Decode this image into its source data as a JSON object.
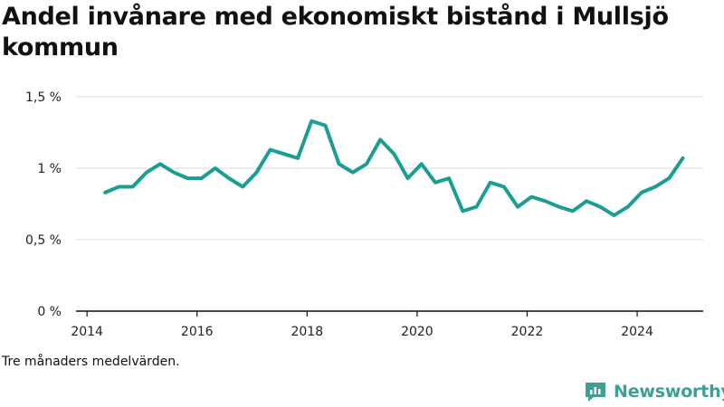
{
  "title": "Andel invånare med ekonomiskt bistånd i Mullsjö kommun",
  "note": "Tre månaders medelvärden.",
  "brand": {
    "name": "Newsworthy",
    "icon": "newsworthy-logo-icon",
    "color": "#3d9f95"
  },
  "chart_data": {
    "type": "line",
    "line_color": "#1a9e91",
    "y_ticks": [
      {
        "value": 0,
        "label": "0 %"
      },
      {
        "value": 0.5,
        "label": "0,5 %"
      },
      {
        "value": 1,
        "label": "1 %"
      },
      {
        "value": 1.5,
        "label": "1,5 %"
      }
    ],
    "x_ticks": [
      {
        "value": 2014,
        "label": "2014"
      },
      {
        "value": 2016,
        "label": "2016"
      },
      {
        "value": 2018,
        "label": "2018"
      },
      {
        "value": 2020,
        "label": "2020"
      },
      {
        "value": 2022,
        "label": "2022"
      },
      {
        "value": 2024,
        "label": "2024"
      }
    ],
    "xlim": [
      2013.8,
      2025.2
    ],
    "ylim": [
      0,
      1.5
    ],
    "grid": true,
    "series": [
      {
        "x": [
          2014.33,
          2014.58,
          2014.83,
          2015.08,
          2015.33,
          2015.58,
          2015.83,
          2016.08,
          2016.33,
          2016.58,
          2016.83,
          2017.08,
          2017.33,
          2017.58,
          2017.83,
          2018.08,
          2018.33,
          2018.58,
          2018.83,
          2019.08,
          2019.33,
          2019.58,
          2019.83,
          2020.08,
          2020.33,
          2020.58,
          2020.83,
          2021.08,
          2021.33,
          2021.58,
          2021.83,
          2022.08,
          2022.33,
          2022.58,
          2022.83,
          2023.08,
          2023.33,
          2023.58,
          2023.83,
          2024.08,
          2024.33,
          2024.58,
          2024.83
        ],
        "values": [
          0.83,
          0.87,
          0.87,
          0.97,
          1.03,
          0.97,
          0.93,
          0.93,
          1.0,
          0.93,
          0.87,
          0.97,
          1.13,
          1.1,
          1.07,
          1.33,
          1.3,
          1.03,
          0.97,
          1.03,
          1.2,
          1.1,
          0.93,
          1.03,
          0.9,
          0.93,
          0.7,
          0.73,
          0.9,
          0.87,
          0.73,
          0.8,
          0.77,
          0.73,
          0.7,
          0.77,
          0.73,
          0.67,
          0.73,
          0.83,
          0.87,
          0.93,
          1.07
        ]
      }
    ]
  }
}
